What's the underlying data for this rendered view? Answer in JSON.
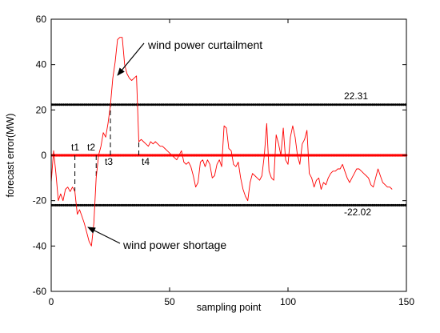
{
  "chart_data": {
    "type": "line",
    "title": "",
    "xlabel": "sampling point",
    "ylabel": "forecast error(MW)",
    "xlim": [
      0,
      150
    ],
    "ylim": [
      -60,
      60
    ],
    "x_ticks": [
      0,
      50,
      100,
      150
    ],
    "y_ticks": [
      -60,
      -40,
      -20,
      0,
      20,
      40,
      60
    ],
    "grid": false,
    "series": [
      {
        "name": "",
        "color": "#ff0000",
        "x": [
          0,
          1,
          2,
          3,
          4,
          5,
          6,
          7,
          8,
          9,
          10,
          11,
          12,
          13,
          14,
          15,
          16,
          17,
          18,
          19,
          20,
          21,
          22,
          23,
          24,
          25,
          26,
          27,
          28,
          29,
          30,
          31,
          32,
          33,
          34,
          35,
          36,
          37,
          38,
          39,
          40,
          41,
          42,
          43,
          44,
          45,
          46,
          47,
          48,
          49,
          50,
          51,
          52,
          53,
          54,
          55,
          56,
          57,
          58,
          59,
          60,
          61,
          62,
          63,
          64,
          65,
          66,
          67,
          68,
          69,
          70,
          71,
          72,
          73,
          74,
          75,
          76,
          77,
          78,
          79,
          80,
          81,
          82,
          83,
          84,
          85,
          86,
          87,
          88,
          89,
          90,
          91,
          92,
          93,
          94,
          95,
          96,
          97,
          98,
          99,
          100,
          101,
          102,
          103,
          104,
          105,
          106,
          107,
          108,
          109,
          110,
          111,
          112,
          113,
          114,
          115,
          116,
          117,
          118,
          119,
          120,
          121,
          122,
          123,
          124,
          125,
          126,
          127,
          128,
          129,
          130,
          131,
          132,
          133,
          134,
          135,
          136,
          137,
          138,
          139,
          140,
          141,
          142,
          143,
          144
        ],
        "values": [
          -12,
          2,
          -8,
          -20,
          -17,
          -20,
          -15,
          -14,
          -16,
          -14,
          -16,
          -26,
          -24,
          -27,
          -30,
          -34,
          -38,
          -40,
          -30,
          -10,
          0,
          4,
          10,
          8,
          14,
          22,
          34,
          41,
          51,
          52,
          52,
          40,
          36,
          34,
          33,
          34,
          35,
          6,
          7,
          6,
          5,
          4,
          6,
          5,
          6,
          5,
          4,
          4,
          3,
          2,
          1,
          0,
          -1,
          -2,
          0,
          2,
          -3,
          -4,
          -3,
          -5,
          -9,
          -14,
          -12,
          -3,
          -2,
          -5,
          -2,
          -4,
          -10,
          -9,
          -4,
          -2,
          -5,
          13,
          12,
          3,
          2,
          -4,
          -5,
          -3,
          -10,
          -15,
          -18,
          -20,
          -12,
          -8,
          -9,
          -10,
          -11,
          -9,
          0,
          14,
          -7,
          -10,
          -11,
          9,
          5,
          0,
          12,
          -2,
          -4,
          8,
          13,
          8,
          0,
          -4,
          5,
          7,
          11,
          -8,
          -10,
          -14,
          -11,
          -10,
          -15,
          -12,
          -13,
          -10,
          -8,
          -7,
          -7,
          -6,
          -6,
          -4,
          -7,
          -10,
          -12,
          -10,
          -8,
          -6,
          -6,
          -7,
          -8,
          -9,
          -10,
          -13,
          -14,
          -10,
          -6,
          -9,
          -12,
          -13,
          -14,
          -14,
          -15
        ]
      }
    ],
    "reference_lines": [
      {
        "y": 22.31,
        "label": "22.31",
        "color": "#000000"
      },
      {
        "y": 0,
        "label": "",
        "color": "#ff0000"
      },
      {
        "y": -22.02,
        "label": "-22.02",
        "color": "#000000"
      }
    ],
    "vertical_markers": [
      {
        "x": 10,
        "label": "t1"
      },
      {
        "x": 19,
        "label": "t2"
      },
      {
        "x": 25,
        "label": "t3"
      },
      {
        "x": 37,
        "label": "t4"
      }
    ],
    "annotations": [
      {
        "text": "wind power curtailment"
      },
      {
        "text": "wind power shortage"
      }
    ]
  }
}
